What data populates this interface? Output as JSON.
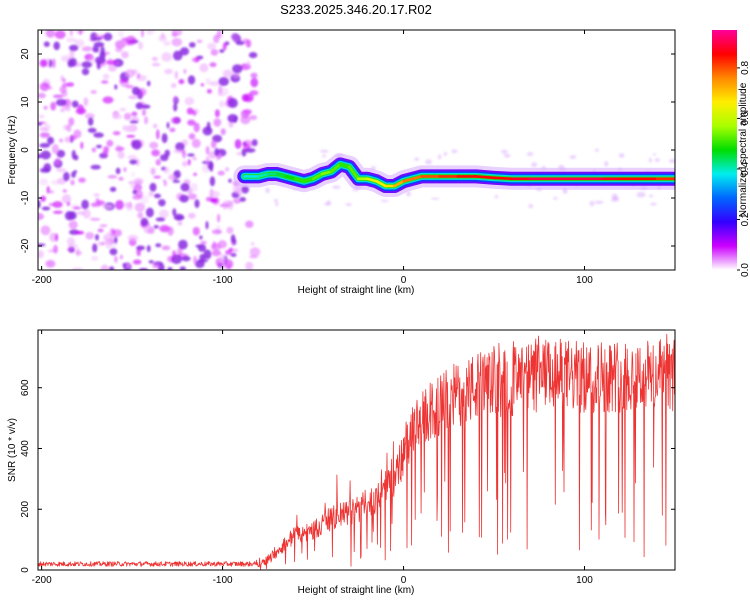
{
  "title": "S233.2025.346.20.17.R02",
  "chart_data": [
    {
      "type": "heatmap",
      "title": "S233.2025.346.20.17.R02",
      "xlabel": "Height of straight line (km)",
      "ylabel": "Frequency (Hz)",
      "xlim": [
        -202,
        150
      ],
      "ylim": [
        -25,
        25
      ],
      "xticks": [
        -200,
        -100,
        0,
        100
      ],
      "yticks": [
        -20,
        -10,
        0,
        10,
        20
      ],
      "colorbar": {
        "label": "Normalized spectral amplitude",
        "range": [
          0,
          0.95
        ],
        "ticks": [
          0.0,
          0.2,
          0.4,
          0.6,
          0.8
        ],
        "colors": [
          "#ffffff",
          "#cc00ff",
          "#3300ff",
          "#0066ff",
          "#00eeee",
          "#00dd00",
          "#aaff00",
          "#ffee00",
          "#ff8800",
          "#ff0000",
          "#ff0099"
        ]
      },
      "noise_region": {
        "x_from": -202,
        "x_to": -82,
        "amplitude": [
          0.02,
          0.1
        ]
      },
      "ridge": {
        "x": [
          -88,
          -80,
          -75,
          -70,
          -65,
          -60,
          -55,
          -50,
          -45,
          -40,
          -35,
          -30,
          -25,
          -20,
          -15,
          -10,
          -5,
          0,
          10,
          20,
          30,
          40,
          50,
          60,
          70,
          80,
          90,
          100,
          110,
          120,
          130,
          140,
          150
        ],
        "freq": [
          -5.5,
          -5.5,
          -5.0,
          -5.0,
          -5.5,
          -6.0,
          -6.5,
          -6.0,
          -5.0,
          -4.5,
          -3.0,
          -3.5,
          -6.0,
          -6.0,
          -6.5,
          -7.5,
          -7.5,
          -6.5,
          -5.5,
          -5.5,
          -5.5,
          -5.5,
          -5.8,
          -6.0,
          -6.0,
          -6.0,
          -6.0,
          -6.0,
          -6.0,
          -6.0,
          -6.0,
          -6.0,
          -6.0
        ],
        "amplitude": [
          0.35,
          0.4,
          0.4,
          0.45,
          0.45,
          0.5,
          0.5,
          0.5,
          0.55,
          0.55,
          0.5,
          0.5,
          0.55,
          0.6,
          0.65,
          0.65,
          0.7,
          0.75,
          0.8,
          0.8,
          0.85,
          0.85,
          0.85,
          0.85,
          0.9,
          0.9,
          0.9,
          0.9,
          0.9,
          0.85,
          0.85,
          0.85,
          0.8
        ]
      }
    },
    {
      "type": "line",
      "xlabel": "Height of straight line (km)",
      "ylabel": "SNR (10 * v/v)",
      "xlim": [
        -202,
        150
      ],
      "ylim": [
        0,
        790
      ],
      "xticks": [
        -200,
        -100,
        0,
        100
      ],
      "yticks": [
        0,
        200,
        400,
        600
      ],
      "series": [
        {
          "name": "SNR",
          "color": "#ee3333",
          "x": [
            -202,
            -190,
            -170,
            -150,
            -130,
            -110,
            -100,
            -90,
            -82,
            -75,
            -70,
            -65,
            -60,
            -55,
            -50,
            -45,
            -40,
            -35,
            -30,
            -25,
            -20,
            -15,
            -10,
            -5,
            0,
            5,
            10,
            15,
            20,
            25,
            30,
            40,
            50,
            60,
            70,
            80,
            90,
            100,
            110,
            120,
            130,
            140,
            150
          ],
          "y": [
            20,
            20,
            20,
            20,
            20,
            20,
            20,
            20,
            20,
            35,
            60,
            90,
            115,
            120,
            130,
            150,
            170,
            180,
            190,
            200,
            220,
            240,
            270,
            300,
            380,
            450,
            490,
            520,
            540,
            560,
            580,
            600,
            620,
            620,
            630,
            640,
            640,
            630,
            640,
            640,
            640,
            640,
            640
          ]
        }
      ]
    }
  ]
}
